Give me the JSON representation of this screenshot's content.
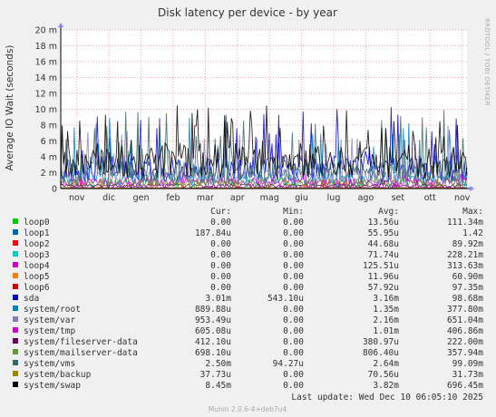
{
  "chart_data": {
    "type": "line",
    "title": "Disk latency per device - by year",
    "ylabel": "Average IO Wait (seconds)",
    "side_label": "RRDTOOL / TOBI OETIKER",
    "ylim": [
      0,
      20
    ],
    "y_ticks": [
      "0",
      "2 m",
      "4 m",
      "6 m",
      "8 m",
      "10 m",
      "12 m",
      "14 m",
      "16 m",
      "18 m",
      "20 m"
    ],
    "y_tick_values": [
      0,
      2,
      4,
      6,
      8,
      10,
      12,
      14,
      16,
      18,
      20
    ],
    "y_unit": "milliseconds",
    "x_ticks": [
      "nov",
      "dic",
      "gen",
      "feb",
      "mar",
      "apr",
      "mag",
      "giu",
      "lug",
      "ago",
      "set",
      "ott",
      "nov"
    ],
    "grid": true,
    "columns": [
      "Cur:",
      "Min:",
      "Avg:",
      "Max:"
    ],
    "series": [
      {
        "name": "loop0",
        "color": "#00cc00",
        "cur": "0.00",
        "min": "0.00",
        "avg": "13.56u",
        "max": "111.34m",
        "level_ms": 0.01
      },
      {
        "name": "loop1",
        "color": "#0066b3",
        "cur": "187.84u",
        "min": "0.00",
        "avg": "55.95u",
        "max": "1.42",
        "level_ms": 0.05
      },
      {
        "name": "loop2",
        "color": "#ff0000",
        "cur": "0.00",
        "min": "0.00",
        "avg": "44.68u",
        "max": "89.92m",
        "level_ms": 0.04
      },
      {
        "name": "loop3",
        "color": "#00cccc",
        "cur": "0.00",
        "min": "0.00",
        "avg": "71.74u",
        "max": "228.21m",
        "level_ms": 0.07
      },
      {
        "name": "loop4",
        "color": "#cc00cc",
        "cur": "0.00",
        "min": "0.00",
        "avg": "125.51u",
        "max": "313.63m",
        "level_ms": 0.12
      },
      {
        "name": "loop5",
        "color": "#ff8000",
        "cur": "0.00",
        "min": "0.00",
        "avg": "11.96u",
        "max": "60.90m",
        "level_ms": 0.01
      },
      {
        "name": "loop6",
        "color": "#cc0000",
        "cur": "0.00",
        "min": "0.00",
        "avg": "57.92u",
        "max": "97.35m",
        "level_ms": 0.05
      },
      {
        "name": "sda",
        "color": "#0000cc",
        "cur": "3.01m",
        "min": "543.10u",
        "avg": "3.16m",
        "max": "98.68m",
        "level_ms": 2.5
      },
      {
        "name": "system/root",
        "color": "#0080c0",
        "cur": "889.88u",
        "min": "0.00",
        "avg": "1.35m",
        "max": "377.80m",
        "level_ms": 1.2
      },
      {
        "name": "system/var",
        "color": "#8080c0",
        "cur": "953.49u",
        "min": "0.00",
        "avg": "2.16m",
        "max": "651.04m",
        "level_ms": 1.5
      },
      {
        "name": "system/tmp",
        "color": "#cc00cc",
        "cur": "605.08u",
        "min": "0.00",
        "avg": "1.01m",
        "max": "406.86m",
        "level_ms": 0.8
      },
      {
        "name": "system/fileserver-data",
        "color": "#660066",
        "cur": "412.10u",
        "min": "0.00",
        "avg": "380.97u",
        "max": "222.00m",
        "level_ms": 0.35
      },
      {
        "name": "system/mailserver-data",
        "color": "#669933",
        "cur": "698.10u",
        "min": "0.00",
        "avg": "806.40u",
        "max": "357.94m",
        "level_ms": 0.7
      },
      {
        "name": "system/vms",
        "color": "#336666",
        "cur": "2.50m",
        "min": "94.27u",
        "avg": "2.64m",
        "max": "99.09m",
        "level_ms": 2.2
      },
      {
        "name": "system/backup",
        "color": "#998800",
        "cur": "37.73u",
        "min": "0.00",
        "avg": "70.56u",
        "max": "31.73m",
        "level_ms": 0.07
      },
      {
        "name": "system/swap",
        "color": "#000000",
        "cur": "8.45m",
        "min": "0.00",
        "avg": "3.82m",
        "max": "696.45m",
        "level_ms": 3.5
      }
    ],
    "last_update": "Last update: Wed Dec 10 06:05:10 2025",
    "footer": "Munin 2.0.6-4+deb7u4"
  }
}
